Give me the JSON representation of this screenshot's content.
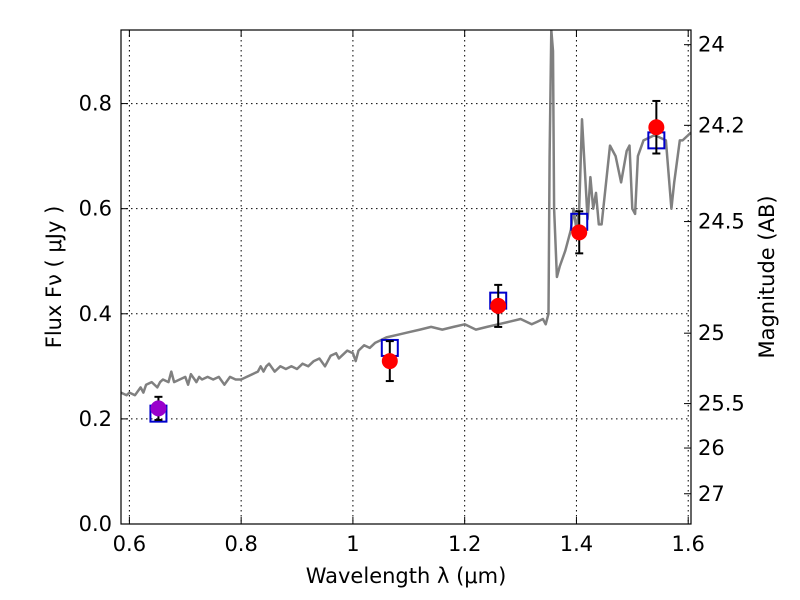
{
  "chart_data": {
    "type": "scatter",
    "title": "",
    "xlabel": "Wavelength  λ (μm)",
    "ylabel": "Flux  Fν  ( μJy )",
    "y2label": "Magnitude (AB)",
    "xlim": [
      0.585,
      1.605
    ],
    "ylim": [
      0.0,
      0.94
    ],
    "grid": true,
    "x_ticks": [
      0.6,
      0.8,
      1.0,
      1.2,
      1.4,
      1.6
    ],
    "x_tick_labels": [
      "0.6",
      "0.8",
      "1",
      "1.2",
      "1.4",
      "1.6"
    ],
    "y_ticks": [
      0.0,
      0.2,
      0.4,
      0.6,
      0.8
    ],
    "y_tick_labels": [
      "0.0",
      "0.2",
      "0.4",
      "0.6",
      "0.8"
    ],
    "mag_ticks": [
      24,
      24.2,
      24.5,
      25,
      25.5,
      26,
      27
    ],
    "mag_tick_labels": [
      "24",
      "24.2",
      "24.5",
      "25",
      "25.5",
      "26",
      "27"
    ],
    "colors": {
      "spectrum": "#808080",
      "model_box": "#0000cc",
      "observed": "#ff0000",
      "observed_first": "#9900cc",
      "errorbar": "#000000"
    },
    "series": [
      {
        "name": "model spectrum",
        "kind": "line",
        "x": [
          0.585,
          0.595,
          0.6,
          0.61,
          0.62,
          0.625,
          0.63,
          0.64,
          0.65,
          0.655,
          0.66,
          0.67,
          0.675,
          0.68,
          0.69,
          0.7,
          0.705,
          0.71,
          0.72,
          0.725,
          0.73,
          0.74,
          0.75,
          0.76,
          0.77,
          0.78,
          0.79,
          0.8,
          0.81,
          0.82,
          0.83,
          0.835,
          0.84,
          0.845,
          0.85,
          0.86,
          0.87,
          0.88,
          0.89,
          0.9,
          0.91,
          0.92,
          0.93,
          0.94,
          0.95,
          0.96,
          0.97,
          0.975,
          0.98,
          0.99,
          1.0,
          1.005,
          1.01,
          1.02,
          1.03,
          1.04,
          1.05,
          1.06,
          1.08,
          1.1,
          1.12,
          1.14,
          1.16,
          1.18,
          1.2,
          1.22,
          1.24,
          1.26,
          1.28,
          1.3,
          1.32,
          1.33,
          1.34,
          1.345,
          1.35,
          1.352,
          1.355,
          1.358,
          1.36,
          1.365,
          1.37,
          1.38,
          1.39,
          1.395,
          1.4,
          1.405,
          1.41,
          1.42,
          1.425,
          1.43,
          1.435,
          1.44,
          1.445,
          1.45,
          1.46,
          1.47,
          1.48,
          1.49,
          1.495,
          1.5,
          1.505,
          1.51,
          1.52,
          1.54,
          1.56,
          1.57,
          1.575,
          1.58,
          1.585,
          1.59,
          1.6,
          1.605
        ],
        "y": [
          0.25,
          0.245,
          0.25,
          0.245,
          0.26,
          0.25,
          0.265,
          0.27,
          0.26,
          0.27,
          0.275,
          0.27,
          0.29,
          0.27,
          0.275,
          0.28,
          0.265,
          0.285,
          0.27,
          0.28,
          0.275,
          0.28,
          0.275,
          0.28,
          0.265,
          0.28,
          0.275,
          0.275,
          0.28,
          0.285,
          0.29,
          0.3,
          0.29,
          0.3,
          0.305,
          0.29,
          0.3,
          0.295,
          0.3,
          0.295,
          0.305,
          0.3,
          0.31,
          0.315,
          0.3,
          0.32,
          0.325,
          0.315,
          0.32,
          0.33,
          0.325,
          0.31,
          0.33,
          0.34,
          0.335,
          0.345,
          0.35,
          0.355,
          0.36,
          0.365,
          0.37,
          0.375,
          0.37,
          0.375,
          0.38,
          0.37,
          0.375,
          0.38,
          0.385,
          0.39,
          0.38,
          0.385,
          0.39,
          0.38,
          0.4,
          0.7,
          0.94,
          0.9,
          0.6,
          0.47,
          0.49,
          0.52,
          0.56,
          0.6,
          0.56,
          0.6,
          0.77,
          0.58,
          0.66,
          0.6,
          0.63,
          0.57,
          0.57,
          0.62,
          0.72,
          0.7,
          0.65,
          0.71,
          0.72,
          0.6,
          0.59,
          0.7,
          0.73,
          0.74,
          0.73,
          0.6,
          0.65,
          0.69,
          0.73,
          0.73,
          0.74,
          0.745
        ]
      },
      {
        "name": "model photometry",
        "kind": "box",
        "x": [
          0.652,
          1.066,
          1.26,
          1.405,
          1.543
        ],
        "y": [
          0.21,
          0.335,
          0.425,
          0.575,
          0.73
        ]
      },
      {
        "name": "observed photometry",
        "kind": "point_errorbar",
        "x": [
          0.652,
          1.066,
          1.26,
          1.405,
          1.543
        ],
        "y": [
          0.22,
          0.31,
          0.415,
          0.555,
          0.755
        ],
        "yerr": [
          0.022,
          0.038,
          0.04,
          0.04,
          0.05
        ]
      }
    ]
  }
}
